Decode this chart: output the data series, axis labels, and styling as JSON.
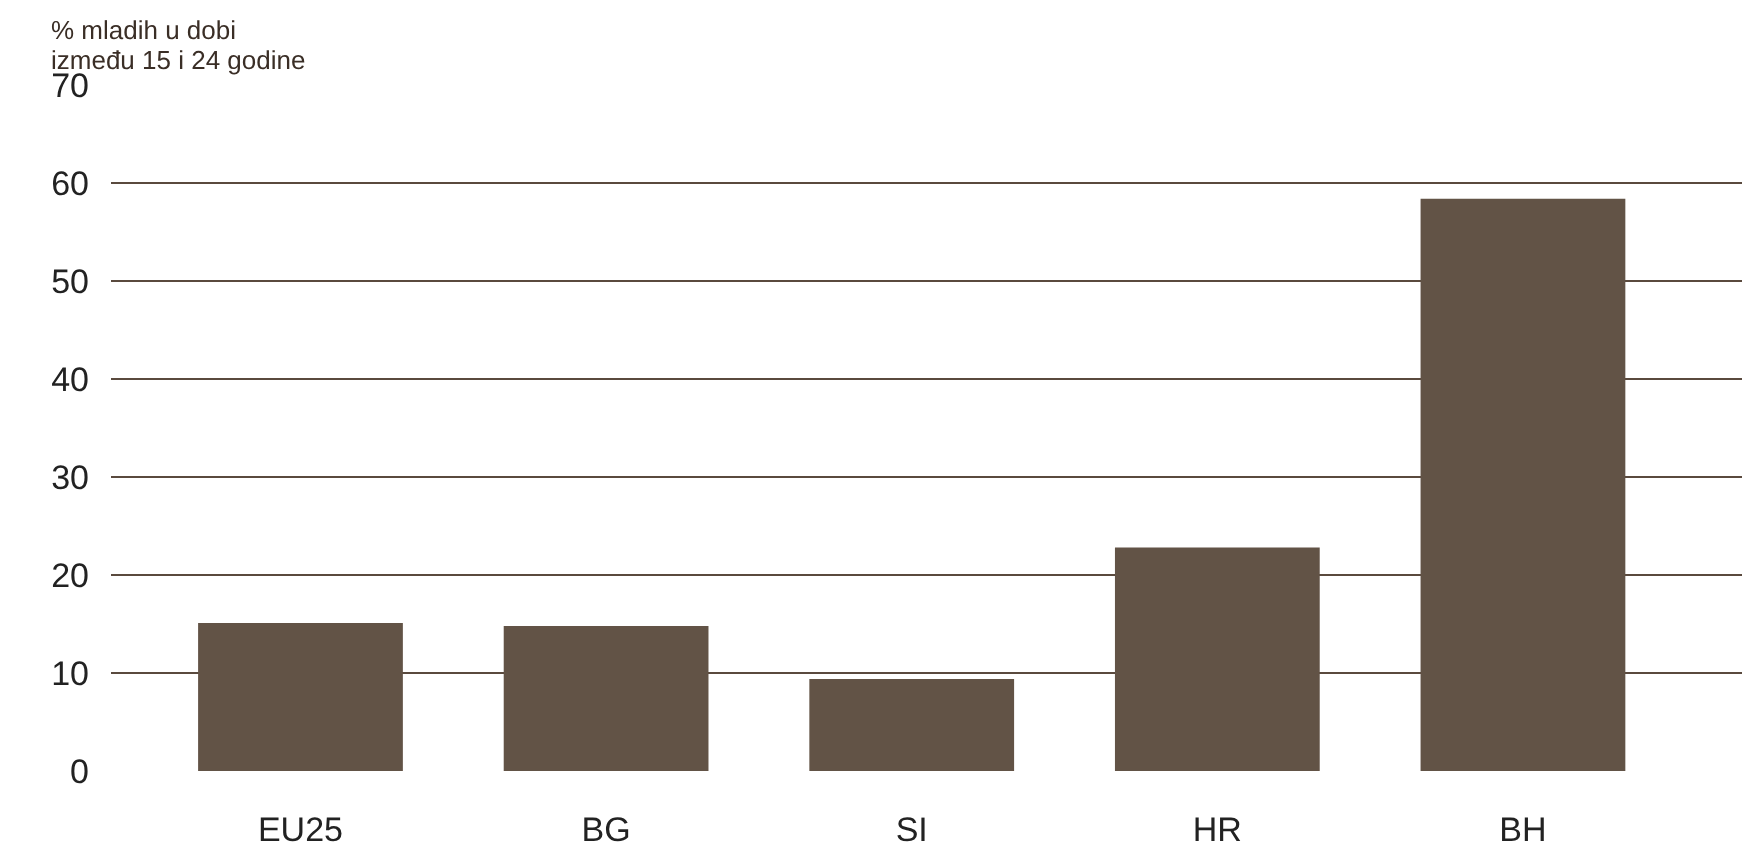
{
  "chart_data": {
    "type": "bar",
    "title": "% mladih u dobi\nizmeđu 15 i 24 godine",
    "categories": [
      "EU25",
      "BG",
      "SI",
      "HR",
      "BH"
    ],
    "values": [
      15.1,
      14.8,
      9.4,
      22.8,
      58.4
    ],
    "color": "#625346",
    "ylim": [
      0,
      70
    ],
    "yticks": [
      0,
      10,
      20,
      30,
      40,
      50,
      60,
      70
    ],
    "grid": "y"
  }
}
